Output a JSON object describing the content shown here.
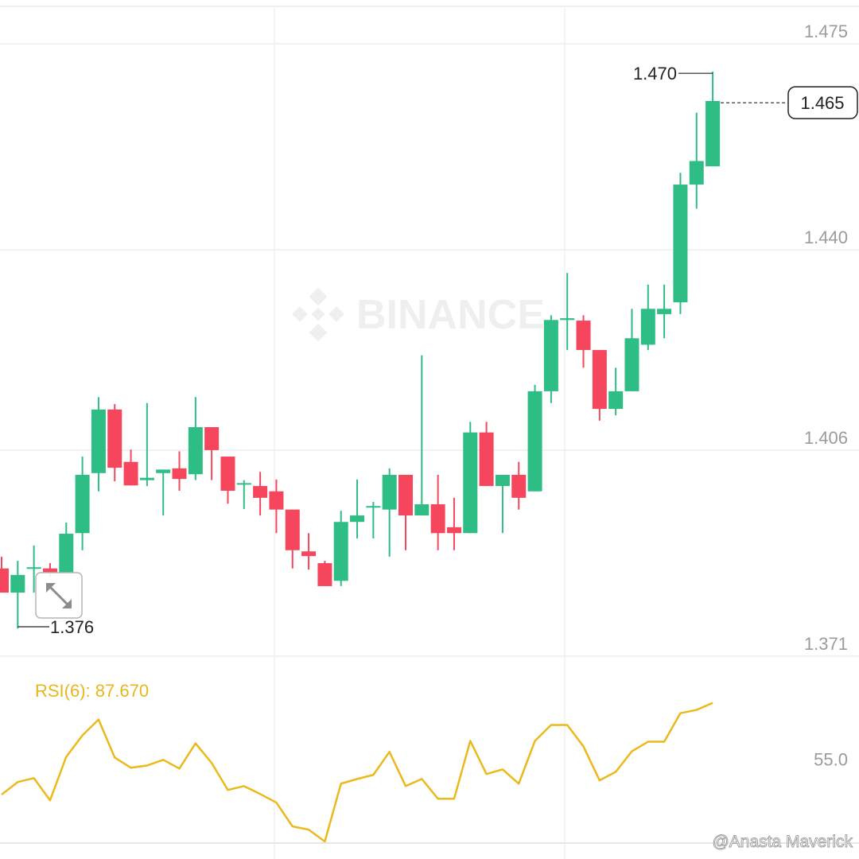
{
  "chart_data": [
    {
      "type": "candlestick",
      "up_color": "#2ebd85",
      "down_color": "#f6465d",
      "open": [
        1.3859,
        1.3818,
        1.3859,
        1.3859,
        1.3852,
        1.3919,
        1.4021,
        1.4129,
        1.404,
        1.4009,
        1.4021,
        1.4029,
        1.4019,
        1.4099,
        1.4049,
        1.4002,
        1.3999,
        1.399,
        1.3959,
        1.3888,
        1.3868,
        1.3838,
        1.3938,
        1.3963,
        1.3959,
        1.4018,
        1.3949,
        1.3968,
        1.3929,
        1.3919,
        1.409,
        1.3999,
        1.4018,
        1.399,
        1.416,
        1.4281,
        1.428,
        1.423,
        1.413,
        1.416,
        1.4239,
        1.4291,
        1.4311,
        1.4511,
        1.4542
      ],
      "high": [
        1.3879,
        1.3872,
        1.3898,
        1.3868,
        1.3937,
        1.4049,
        1.415,
        1.4138,
        1.4061,
        1.414,
        1.4027,
        1.4058,
        1.415,
        1.4099,
        1.4049,
        1.4009,
        1.4023,
        1.401,
        1.3959,
        1.3919,
        1.3872,
        1.3957,
        1.401,
        1.3972,
        1.4029,
        1.4018,
        1.4221,
        1.4018,
        1.3979,
        1.4108,
        1.4108,
        1.4018,
        1.404,
        1.4171,
        1.4289,
        1.4361,
        1.4289,
        1.423,
        1.42,
        1.43,
        1.4341,
        1.4341,
        1.4531,
        1.4633,
        1.4703
      ],
      "low": [
        1.3818,
        1.3757,
        1.3818,
        1.3845,
        1.3852,
        1.389,
        1.399,
        1.4007,
        1.4,
        1.3999,
        1.3949,
        1.3991,
        1.4009,
        1.4009,
        1.3969,
        1.396,
        1.3949,
        1.3919,
        1.3859,
        1.3857,
        1.3829,
        1.3829,
        1.391,
        1.391,
        1.3879,
        1.389,
        1.3949,
        1.389,
        1.389,
        1.3919,
        1.3999,
        1.3919,
        1.3959,
        1.399,
        1.414,
        1.423,
        1.42,
        1.411,
        1.4119,
        1.416,
        1.423,
        1.425,
        1.4291,
        1.447,
        1.4542
      ],
      "close": [
        1.3818,
        1.3848,
        1.3861,
        1.3852,
        1.3918,
        1.4018,
        1.4129,
        1.403,
        1.4,
        1.4013,
        1.4027,
        1.4011,
        1.4099,
        1.406,
        1.3991,
        1.4004,
        1.3979,
        1.3959,
        1.389,
        1.388,
        1.3829,
        1.3938,
        1.3949,
        1.3965,
        1.4018,
        1.3949,
        1.3968,
        1.3919,
        1.3919,
        1.409,
        1.3999,
        1.4018,
        1.3979,
        1.416,
        1.4281,
        1.4284,
        1.423,
        1.413,
        1.416,
        1.425,
        1.43,
        1.43,
        1.4511,
        1.4551,
        1.4653
      ],
      "ylim": [
        1.371,
        1.4811
      ],
      "yticks": [
        1.475,
        {
          "value": 1.44,
          "label": "1.440"
        },
        1.406,
        1.371
      ],
      "grid": true,
      "high_label": {
        "value": 1.47,
        "label": "1.470"
      },
      "low_label": {
        "value": 1.376,
        "label": "1.376"
      },
      "last_price": {
        "value": 1.465,
        "label": "1.465"
      },
      "watermark": "BINANCE"
    },
    {
      "type": "line",
      "title": "RSI(6): 87.670",
      "color": "#ecb91c",
      "values": [
        42.6,
        48.8,
        50.7,
        39.8,
        61.2,
        71.7,
        79.5,
        60.8,
        55.8,
        56.9,
        59.7,
        55.4,
        67.8,
        58.1,
        44.9,
        46.8,
        42.9,
        38.7,
        27.0,
        25.4,
        19.6,
        48.0,
        50.3,
        52.3,
        63.6,
        46.8,
        50.3,
        40.6,
        40.6,
        69.0,
        52.7,
        55.0,
        48.0,
        69.0,
        76.8,
        76.8,
        66.3,
        49.6,
        53.8,
        63.9,
        68.6,
        68.6,
        82.6,
        84.2,
        87.67
      ],
      "ylim": [
        18.8,
        110.6
      ],
      "yticks": [
        {
          "value": 55,
          "label": "55.0"
        }
      ],
      "credit": "@Anasta Maverick"
    }
  ]
}
